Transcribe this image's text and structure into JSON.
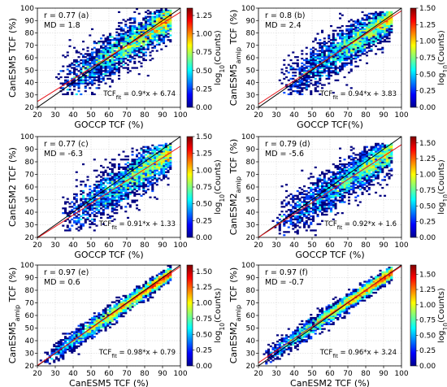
{
  "chart_data": [
    {
      "type": "heatmap",
      "panel": "(a)",
      "xlabel": "GOCCP TCF (%)",
      "ylabel": "CanESM5 TCF (%)",
      "xlim": [
        20,
        100
      ],
      "ylim": [
        20,
        100
      ],
      "xticks": [
        20,
        30,
        40,
        50,
        60,
        70,
        80,
        90,
        100
      ],
      "yticks": [
        20,
        30,
        40,
        50,
        60,
        70,
        80,
        90,
        100
      ],
      "r_text": "r = 0.77",
      "md_text": "MD = 1.8",
      "fit_text": "TCF_fit = 0.9*x + 6.74",
      "fit": {
        "slope": 0.9,
        "intercept": 6.74
      },
      "colorbar": {
        "label": "log10(Counts)",
        "range": [
          0,
          1.35
        ],
        "ticks": [
          "0.00",
          "0.25",
          "0.50",
          "0.75",
          "1.00",
          "1.25"
        ]
      },
      "data_range": {
        "xmin": 30,
        "xmax": 95,
        "ymin": 30,
        "ymax": 95
      }
    },
    {
      "type": "heatmap",
      "panel": "(b)",
      "xlabel": "GOCCP TCF(%)",
      "ylabel": "CanESM5amip TCF (%)",
      "xlim": [
        20,
        100
      ],
      "ylim": [
        20,
        100
      ],
      "xticks": [
        20,
        30,
        40,
        50,
        60,
        70,
        80,
        90,
        100
      ],
      "yticks": [
        20,
        30,
        40,
        50,
        60,
        70,
        80,
        90,
        100
      ],
      "r_text": "r = 0.8",
      "md_text": "MD = 2.4",
      "fit_text": "TCF_fit = 0.94*x + 3.83",
      "fit": {
        "slope": 0.94,
        "intercept": 3.83
      },
      "colorbar": {
        "label": "log10(Counts)",
        "range": [
          0,
          1.5
        ],
        "ticks": [
          "0.00",
          "0.25",
          "0.50",
          "0.75",
          "1.00",
          "1.25",
          "1.50"
        ]
      },
      "data_range": {
        "xmin": 32,
        "xmax": 95,
        "ymin": 30,
        "ymax": 93
      }
    },
    {
      "type": "heatmap",
      "panel": "(c)",
      "xlabel": "GOCCP TCF (%)",
      "ylabel": "CanESM2 TCF (%)",
      "xlim": [
        20,
        100
      ],
      "ylim": [
        20,
        100
      ],
      "xticks": [
        20,
        30,
        40,
        50,
        60,
        70,
        80,
        90,
        100
      ],
      "yticks": [
        20,
        30,
        40,
        50,
        60,
        70,
        80,
        90,
        100
      ],
      "r_text": "r = 0.77",
      "md_text": "MD = -6.3",
      "fit_text": "TCF_fit = 0.91*x + 1.33",
      "fit": {
        "slope": 0.91,
        "intercept": 1.33
      },
      "colorbar": {
        "label": "log10(Counts)",
        "range": [
          0,
          1.5
        ],
        "ticks": [
          "0.00",
          "0.25",
          "0.50",
          "0.75",
          "1.00",
          "1.25",
          "1.50"
        ]
      },
      "data_range": {
        "xmin": 33,
        "xmax": 95,
        "ymin": 25,
        "ymax": 90
      }
    },
    {
      "type": "heatmap",
      "panel": "(d)",
      "xlabel": "GOCCP TCF (%)",
      "ylabel": "CanESM2amip TCF (%)",
      "xlim": [
        20,
        100
      ],
      "ylim": [
        20,
        100
      ],
      "xticks": [
        20,
        30,
        40,
        50,
        60,
        70,
        80,
        90,
        100
      ],
      "yticks": [
        20,
        30,
        40,
        50,
        60,
        70,
        80,
        90,
        100
      ],
      "r_text": "r = 0.79",
      "md_text": "MD = -5.6",
      "fit_text": "TCF_fit = 0.92*x + 1.6",
      "fit": {
        "slope": 0.92,
        "intercept": 1.6
      },
      "colorbar": {
        "label": "log10(Counts)",
        "range": [
          0,
          1.6
        ],
        "ticks": [
          "0.00",
          "0.25",
          "0.50",
          "0.75",
          "1.00",
          "1.25",
          "1.50"
        ]
      },
      "data_range": {
        "xmin": 28,
        "xmax": 95,
        "ymin": 22,
        "ymax": 90
      }
    },
    {
      "type": "heatmap",
      "panel": "(e)",
      "xlabel": "CanESM5 TCF (%)",
      "ylabel": "CanESM5amip TCF (%)",
      "xlim": [
        20,
        100
      ],
      "ylim": [
        20,
        100
      ],
      "xticks": [
        20,
        30,
        40,
        50,
        60,
        70,
        80,
        90,
        100
      ],
      "yticks": [
        20,
        30,
        40,
        50,
        60,
        70,
        80,
        90,
        100
      ],
      "r_text": "r = 0.97",
      "md_text": "MD = 0.6",
      "fit_text": "TCF_fit = 0.98*x + 0.79",
      "fit": {
        "slope": 0.98,
        "intercept": 0.79
      },
      "colorbar": {
        "label": "log10(Counts)",
        "range": [
          0,
          1.6
        ],
        "ticks": [
          "0.00",
          "0.25",
          "0.50",
          "0.75",
          "1.00",
          "1.25",
          "1.50"
        ]
      },
      "data_range": {
        "xmin": 22,
        "xmax": 95,
        "ymin": 22,
        "ymax": 95
      }
    },
    {
      "type": "heatmap",
      "panel": "(f)",
      "xlabel": "CanESM2 TCF (%)",
      "ylabel": "CanESM2amip TCF (%)",
      "xlim": [
        20,
        100
      ],
      "ylim": [
        20,
        100
      ],
      "xticks": [
        20,
        30,
        40,
        50,
        60,
        70,
        80,
        90,
        100
      ],
      "yticks": [
        20,
        30,
        40,
        50,
        60,
        70,
        80,
        90,
        100
      ],
      "r_text": "r = 0.97",
      "md_text": "MD = -0.7",
      "fit_text": "TCF_fit = 0.96*x + 3.24",
      "fit": {
        "slope": 0.96,
        "intercept": 3.24
      },
      "colorbar": {
        "label": "log10(Counts)",
        "range": [
          0,
          1.65
        ],
        "ticks": [
          "0.00",
          "0.25",
          "0.50",
          "0.75",
          "1.00",
          "1.25",
          "1.50"
        ]
      },
      "data_range": {
        "xmin": 22,
        "xmax": 95,
        "ymin": 22,
        "ymax": 95
      }
    }
  ],
  "colors": {
    "one_to_one_line": "#000000",
    "fit_line": "#e8141a"
  }
}
